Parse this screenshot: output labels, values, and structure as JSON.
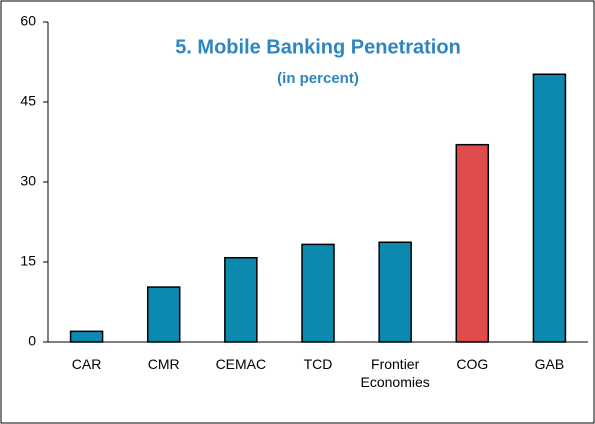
{
  "chart_data": {
    "type": "bar",
    "title": "5. Mobile Banking Penetration",
    "subtitle": "(in percent)",
    "categories": [
      "CAR",
      "CMR",
      "CEMAC",
      "TCD",
      "Frontier Economies",
      "COG",
      "GAB"
    ],
    "values": [
      2,
      10.3,
      15.8,
      18.3,
      18.7,
      37,
      50.2
    ],
    "colors": [
      "#0b89ae",
      "#0b89ae",
      "#0b89ae",
      "#0b89ae",
      "#0b89ae",
      "#e04c4c",
      "#0b89ae"
    ],
    "ylim": [
      0,
      60
    ],
    "yticks": [
      0,
      15,
      30,
      45,
      60
    ],
    "grid": false
  }
}
